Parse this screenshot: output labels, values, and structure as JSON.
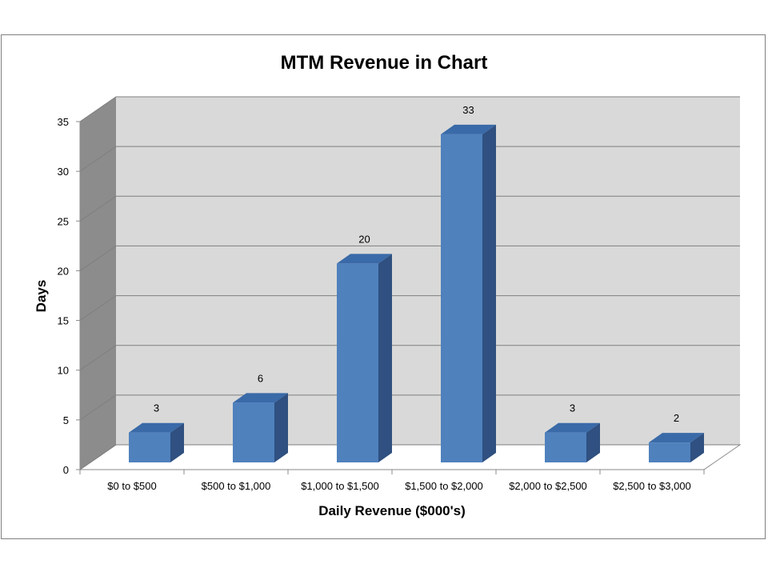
{
  "chart_data": {
    "type": "bar",
    "title": "MTM Revenue in Chart",
    "xlabel": "Daily Revenue ($000's)",
    "ylabel": "Days",
    "categories": [
      "$0 to $500",
      "$500 to $1,000",
      "$1,000 to $1,500",
      "$1,500 to $2,000",
      "$2,000 to $2,500",
      "$2,500 to $3,000"
    ],
    "values": [
      3,
      6,
      20,
      33,
      3,
      2
    ],
    "ylim": [
      0,
      35
    ],
    "yticks": [
      0,
      5,
      10,
      15,
      20,
      25,
      30,
      35
    ],
    "grid": true,
    "legend": "none",
    "style": "3d-column",
    "colors": {
      "bar_front": "#4f81bd",
      "bar_top": "#3a6aa8",
      "bar_side": "#2f5080",
      "back_wall": "#d9d9d9",
      "side_wall": "#8c8c8c",
      "floor": "#ffffff",
      "gridline": "#7f7f7f"
    }
  }
}
